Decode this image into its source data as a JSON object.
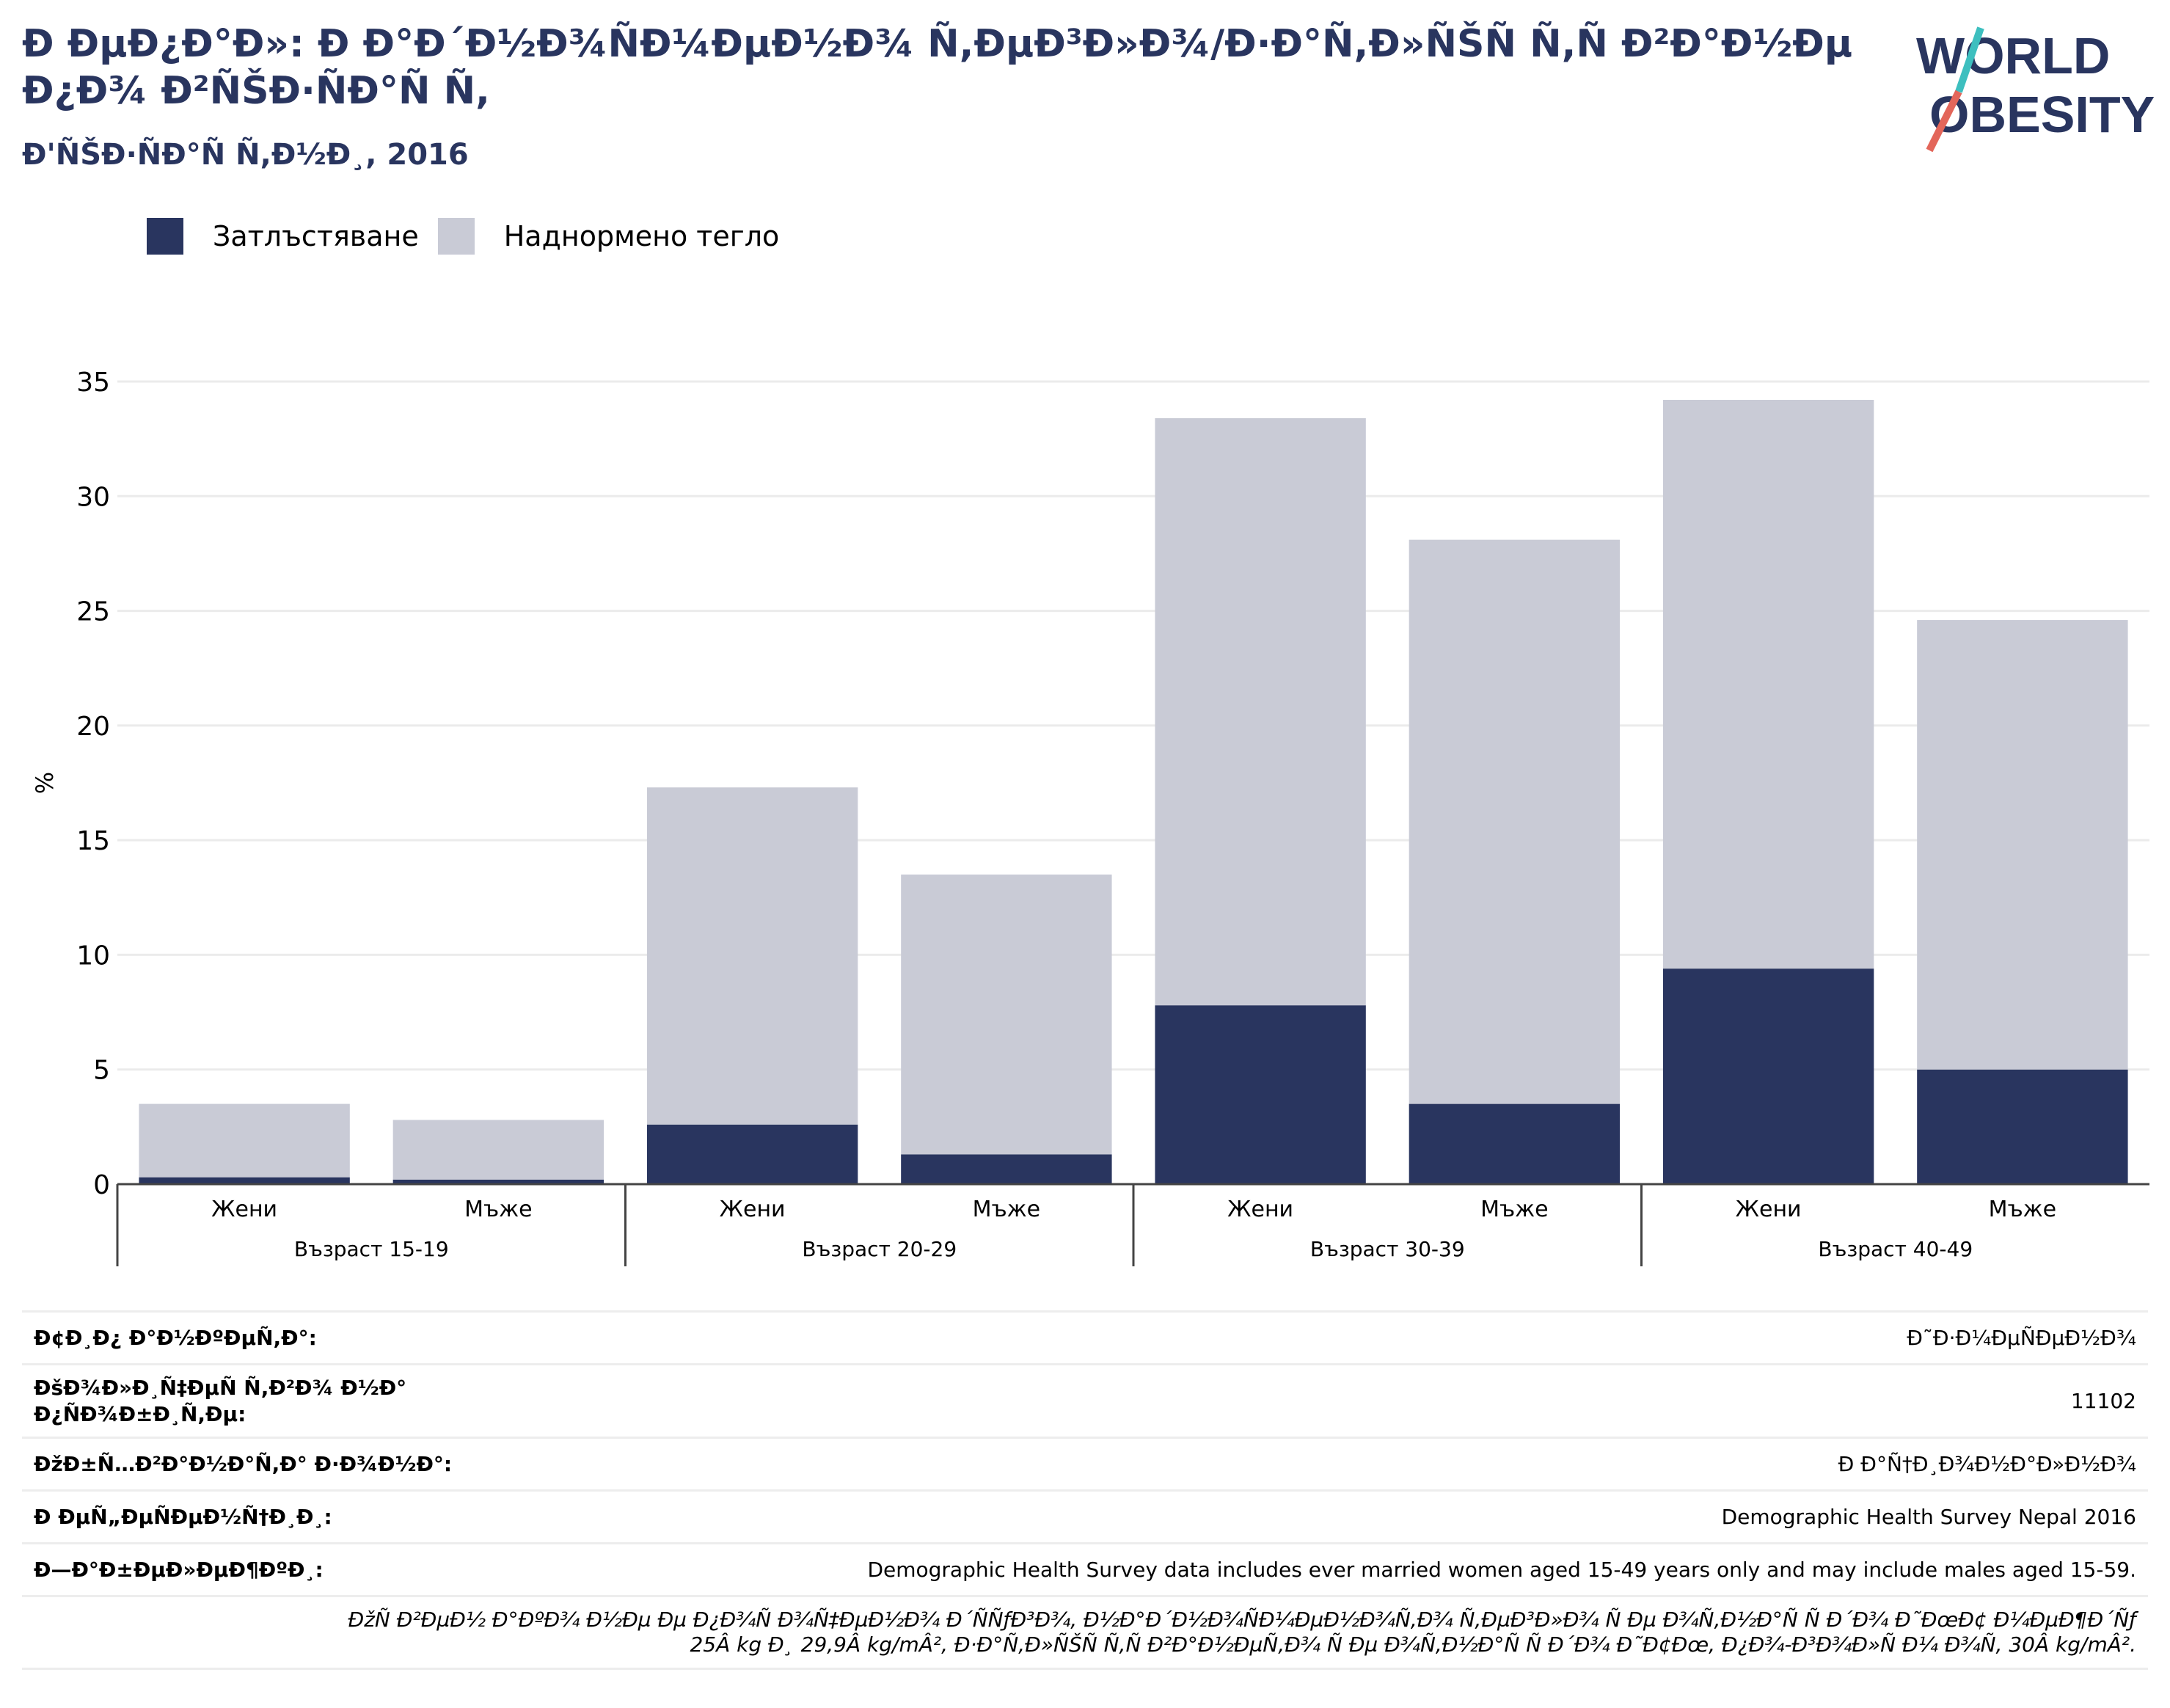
{
  "header": {
    "title": "Ð ÐµÐ¿Ð°Ð»: Ð Ð°Ð´Ð½Ð¾ÑÐ¼ÐµÐ½Ð¾ Ñ,ÐµÐ³Ð»Ð¾/Ð·Ð°Ñ,Ð»ÑŠÑ Ñ,Ñ Ð²Ð°Ð½Ðµ Ð¿Ð¾ Ð²ÑŠÐ·ÑÐ°Ñ Ñ,",
    "subtitle": "Ð'ÑŠÐ·ÑÐ°Ñ Ñ,Ð½Ð¸, 2016"
  },
  "logo": {
    "line1": "WORLD",
    "line2": "OBESITY",
    "accent_colors": [
      "#3dbfbf",
      "#e3665a"
    ],
    "text_color": "#29355f"
  },
  "legend": {
    "items": [
      {
        "label": "Затлъстяване",
        "color": "#29355f"
      },
      {
        "label": "Наднормено тегло",
        "color": "#c9cbd6"
      }
    ]
  },
  "chart_data": {
    "type": "bar",
    "stacked": true,
    "ylabel": "%",
    "ylim": [
      0,
      35
    ],
    "yticks": [
      "0",
      "5",
      "10",
      "15",
      "20",
      "25",
      "30",
      "35"
    ],
    "grid": true,
    "legend_position": "top-left",
    "categories": [
      "Жени",
      "Мъже",
      "Жени",
      "Мъже",
      "Жени",
      "Мъже",
      "Жени",
      "Мъже"
    ],
    "groups": [
      {
        "label": "Възраст 15-19",
        "count": 2
      },
      {
        "label": "Възраст 20-29",
        "count": 2
      },
      {
        "label": "Възраст 30-39",
        "count": 2
      },
      {
        "label": "Възраст 40-49",
        "count": 2
      }
    ],
    "series": [
      {
        "name": "Затлъстяване",
        "color": "#29355f",
        "values": [
          0.3,
          0.2,
          2.6,
          1.3,
          7.8,
          3.5,
          9.4,
          5.0
        ]
      },
      {
        "name": "Наднормено тегло",
        "color": "#c9cbd6",
        "values": [
          3.2,
          2.6,
          14.7,
          12.2,
          25.6,
          24.6,
          24.8,
          19.6
        ]
      }
    ]
  },
  "meta": {
    "rows": [
      {
        "label": "Ð¢Ð¸Ð¿ Ð°Ð½ÐºÐµÑ,Ð°:",
        "value": "Ð˜Ð·Ð¼ÐµÑÐµÐ½Ð¾"
      },
      {
        "label": "ÐšÐ¾Ð»Ð¸Ñ‡ÐµÑ Ñ,Ð²Ð¾ Ð½Ð° Ð¿ÑÐ¾Ð±Ð¸Ñ,Ðµ:",
        "value": "11102"
      },
      {
        "label": "ÐžÐ±Ñ…Ð²Ð°Ð½Ð°Ñ,Ð° Ð·Ð¾Ð½Ð°:",
        "value": "Ð Ð°Ñ†Ð¸Ð¾Ð½Ð°Ð»Ð½Ð¾"
      },
      {
        "label": "Ð ÐµÑ„ÐµÑÐµÐ½Ñ†Ð¸Ð¸:",
        "value": "Demographic Health Survey Nepal 2016"
      },
      {
        "label": "Ð—Ð°Ð±ÐµÐ»ÐµÐ¶ÐºÐ¸:",
        "value": "Demographic Health Survey data includes ever married women aged 15-49 years only and may include males aged 15-59."
      }
    ],
    "note_line1": "ÐžÑ Ð²ÐµÐ½ Ð°ÐºÐ¾ Ð½Ðµ Ðµ Ð¿Ð¾Ñ Ð¾Ñ‡ÐµÐ½Ð¾ Ð´ÑÑƒÐ³Ð¾, Ð½Ð°Ð´Ð½Ð¾ÑÐ¼ÐµÐ½Ð¾Ñ,Ð¾ Ñ,ÐµÐ³Ð»Ð¾ Ñ Ðµ Ð¾Ñ,Ð½Ð°Ñ Ñ Ð´Ð¾ Ð˜ÐœÐ¢ Ð¼ÐµÐ¶Ð´Ñƒ",
    "note_line2": "25Â kg Ð¸ 29,9Â kg/mÂ², Ð·Ð°Ñ,Ð»ÑŠÑ Ñ,Ñ Ð²Ð°Ð½ÐµÑ,Ð¾ Ñ Ðµ Ð¾Ñ,Ð½Ð°Ñ Ñ Ð´Ð¾ Ð˜Ð¢Ðœ, Ð¿Ð¾-Ð³Ð¾Ð»Ñ Ð¼ Ð¾Ñ, 30Â kg/mÂ²."
  }
}
